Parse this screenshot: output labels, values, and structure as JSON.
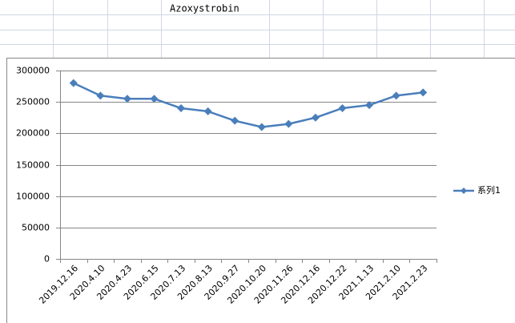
{
  "sheet_title": "Azoxystrobin",
  "chart_data": {
    "type": "line",
    "categories": [
      "2019.12.16",
      "2020.4.10",
      "2020.4.23",
      "2020.6.15",
      "2020.7.13",
      "2020.8.13",
      "2020.9.27",
      "2020.10.20",
      "2020.11.26",
      "2020.12.16",
      "2020.12.22",
      "2021.1.13",
      "2021.2.10",
      "2021.2.23"
    ],
    "series": [
      {
        "name": "系列1",
        "color": "#4a7ebb",
        "values": [
          280000,
          260000,
          255000,
          255000,
          240000,
          235000,
          220000,
          210000,
          215000,
          225000,
          240000,
          245000,
          260000,
          265000
        ]
      }
    ],
    "ylim": [
      0,
      300000
    ],
    "yticks": [
      0,
      50000,
      100000,
      150000,
      200000,
      250000,
      300000
    ],
    "grid": true,
    "legend": "right"
  }
}
